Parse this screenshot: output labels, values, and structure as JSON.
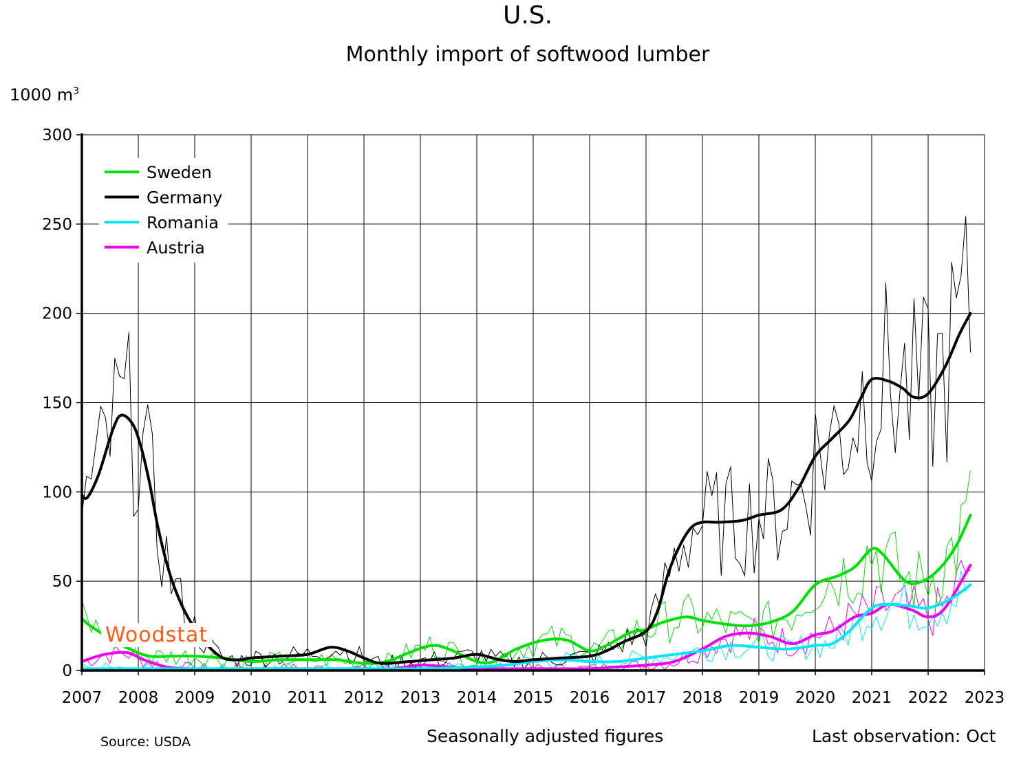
{
  "header": {
    "title": "U.S.",
    "subtitle": "Monthly import of softwood lumber",
    "unit_base": "1000 m",
    "unit_exp": "3"
  },
  "footer": {
    "source": "Source: USDA",
    "note": "Seasonally adjusted figures",
    "last_observation": "Last observation: Oct"
  },
  "logo": {
    "text": "Woodstat",
    "color": "#ff5a14"
  },
  "chart_data": {
    "type": "line",
    "title": "Monthly import of softwood lumber",
    "ylabel": "1000 m3",
    "xlim": [
      2007,
      2023
    ],
    "ylim": [
      0,
      300
    ],
    "x_ticks": [
      "2007",
      "2008",
      "2009",
      "2010",
      "2011",
      "2012",
      "2013",
      "2014",
      "2015",
      "2016",
      "2017",
      "2018",
      "2019",
      "2020",
      "2021",
      "2022",
      "2023"
    ],
    "y_ticks": [
      "0",
      "50",
      "100",
      "150",
      "200",
      "250",
      "300"
    ],
    "grid": true,
    "legend_position": "top-left",
    "series": [
      {
        "name": "Sweden",
        "color": "#00e000",
        "trend_points": [
          [
            2007.0,
            29
          ],
          [
            2007.15,
            25
          ],
          [
            2007.5,
            18
          ],
          [
            2007.85,
            12
          ],
          [
            2008.2,
            8
          ],
          [
            2008.6,
            8
          ],
          [
            2009.0,
            8
          ],
          [
            2009.5,
            7
          ],
          [
            2010.0,
            5
          ],
          [
            2010.5,
            6
          ],
          [
            2011.0,
            6
          ],
          [
            2011.5,
            6
          ],
          [
            2012.0,
            4
          ],
          [
            2012.4,
            5
          ],
          [
            2012.8,
            10
          ],
          [
            2013.2,
            14
          ],
          [
            2013.5,
            12
          ],
          [
            2014.0,
            5
          ],
          [
            2014.3,
            5
          ],
          [
            2014.7,
            12
          ],
          [
            2015.2,
            17
          ],
          [
            2015.6,
            17
          ],
          [
            2016.0,
            11
          ],
          [
            2016.3,
            14
          ],
          [
            2016.7,
            21
          ],
          [
            2017.0,
            23
          ],
          [
            2017.3,
            27
          ],
          [
            2017.7,
            30
          ],
          [
            2018.0,
            28
          ],
          [
            2018.4,
            26
          ],
          [
            2018.8,
            25
          ],
          [
            2019.2,
            27
          ],
          [
            2019.6,
            33
          ],
          [
            2020.0,
            48
          ],
          [
            2020.4,
            53
          ],
          [
            2020.7,
            58
          ],
          [
            2021.0,
            68
          ],
          [
            2021.2,
            65
          ],
          [
            2021.6,
            50
          ],
          [
            2021.9,
            50
          ],
          [
            2022.2,
            57
          ],
          [
            2022.5,
            70
          ],
          [
            2022.75,
            87
          ]
        ]
      },
      {
        "name": "Germany",
        "color": "#000000",
        "trend_points": [
          [
            2007.0,
            98
          ],
          [
            2007.1,
            97
          ],
          [
            2007.3,
            110
          ],
          [
            2007.55,
            135
          ],
          [
            2007.7,
            143
          ],
          [
            2007.9,
            138
          ],
          [
            2008.05,
            125
          ],
          [
            2008.2,
            105
          ],
          [
            2008.35,
            80
          ],
          [
            2008.55,
            55
          ],
          [
            2008.75,
            38
          ],
          [
            2008.95,
            26
          ],
          [
            2009.2,
            15
          ],
          [
            2009.5,
            7
          ],
          [
            2009.8,
            6
          ],
          [
            2010.0,
            7
          ],
          [
            2010.5,
            8
          ],
          [
            2011.0,
            9
          ],
          [
            2011.4,
            13
          ],
          [
            2011.7,
            11
          ],
          [
            2012.0,
            7
          ],
          [
            2012.3,
            4
          ],
          [
            2012.8,
            5
          ],
          [
            2013.2,
            6
          ],
          [
            2013.6,
            7
          ],
          [
            2014.0,
            9
          ],
          [
            2014.4,
            6
          ],
          [
            2014.7,
            5
          ],
          [
            2015.0,
            6
          ],
          [
            2015.5,
            7
          ],
          [
            2016.0,
            8
          ],
          [
            2016.3,
            11
          ],
          [
            2016.6,
            16
          ],
          [
            2017.0,
            22
          ],
          [
            2017.2,
            33
          ],
          [
            2017.4,
            55
          ],
          [
            2017.6,
            70
          ],
          [
            2017.8,
            80
          ],
          [
            2018.0,
            83
          ],
          [
            2018.3,
            83
          ],
          [
            2018.7,
            84
          ],
          [
            2019.0,
            87
          ],
          [
            2019.4,
            90
          ],
          [
            2019.7,
            102
          ],
          [
            2020.0,
            120
          ],
          [
            2020.3,
            130
          ],
          [
            2020.6,
            140
          ],
          [
            2020.8,
            152
          ],
          [
            2021.0,
            163
          ],
          [
            2021.3,
            162
          ],
          [
            2021.55,
            158
          ],
          [
            2021.75,
            153
          ],
          [
            2022.0,
            155
          ],
          [
            2022.3,
            170
          ],
          [
            2022.55,
            188
          ],
          [
            2022.75,
            200
          ]
        ]
      },
      {
        "name": "Romania",
        "color": "#00e8f8",
        "trend_points": [
          [
            2007.0,
            1
          ],
          [
            2008.0,
            1
          ],
          [
            2009.0,
            1
          ],
          [
            2010.0,
            1
          ],
          [
            2011.0,
            1
          ],
          [
            2012.0,
            1
          ],
          [
            2013.0,
            1
          ],
          [
            2014.0,
            2
          ],
          [
            2014.5,
            3
          ],
          [
            2015.0,
            5
          ],
          [
            2015.5,
            6
          ],
          [
            2016.0,
            5
          ],
          [
            2016.5,
            5
          ],
          [
            2017.0,
            7
          ],
          [
            2017.5,
            9
          ],
          [
            2018.0,
            11
          ],
          [
            2018.5,
            14
          ],
          [
            2019.0,
            13
          ],
          [
            2019.5,
            12
          ],
          [
            2020.0,
            14
          ],
          [
            2020.3,
            15
          ],
          [
            2020.6,
            22
          ],
          [
            2021.0,
            35
          ],
          [
            2021.3,
            37
          ],
          [
            2021.7,
            36
          ],
          [
            2022.0,
            35
          ],
          [
            2022.4,
            40
          ],
          [
            2022.75,
            48
          ]
        ]
      },
      {
        "name": "Austria",
        "color": "#ee00ee",
        "trend_points": [
          [
            2007.0,
            5
          ],
          [
            2007.4,
            9
          ],
          [
            2007.8,
            10
          ],
          [
            2008.1,
            6
          ],
          [
            2008.5,
            2
          ],
          [
            2009.0,
            1
          ],
          [
            2010.0,
            1
          ],
          [
            2011.0,
            1
          ],
          [
            2012.0,
            1
          ],
          [
            2012.5,
            1
          ],
          [
            2013.0,
            3
          ],
          [
            2013.5,
            2
          ],
          [
            2014.0,
            1
          ],
          [
            2015.0,
            1
          ],
          [
            2016.0,
            1
          ],
          [
            2016.5,
            2
          ],
          [
            2017.0,
            3
          ],
          [
            2017.5,
            5
          ],
          [
            2018.0,
            12
          ],
          [
            2018.4,
            19
          ],
          [
            2018.8,
            21
          ],
          [
            2019.2,
            19
          ],
          [
            2019.6,
            15
          ],
          [
            2020.0,
            20
          ],
          [
            2020.3,
            22
          ],
          [
            2020.7,
            30
          ],
          [
            2021.0,
            32
          ],
          [
            2021.3,
            37
          ],
          [
            2021.7,
            34
          ],
          [
            2022.0,
            30
          ],
          [
            2022.3,
            35
          ],
          [
            2022.75,
            59
          ]
        ]
      }
    ]
  }
}
